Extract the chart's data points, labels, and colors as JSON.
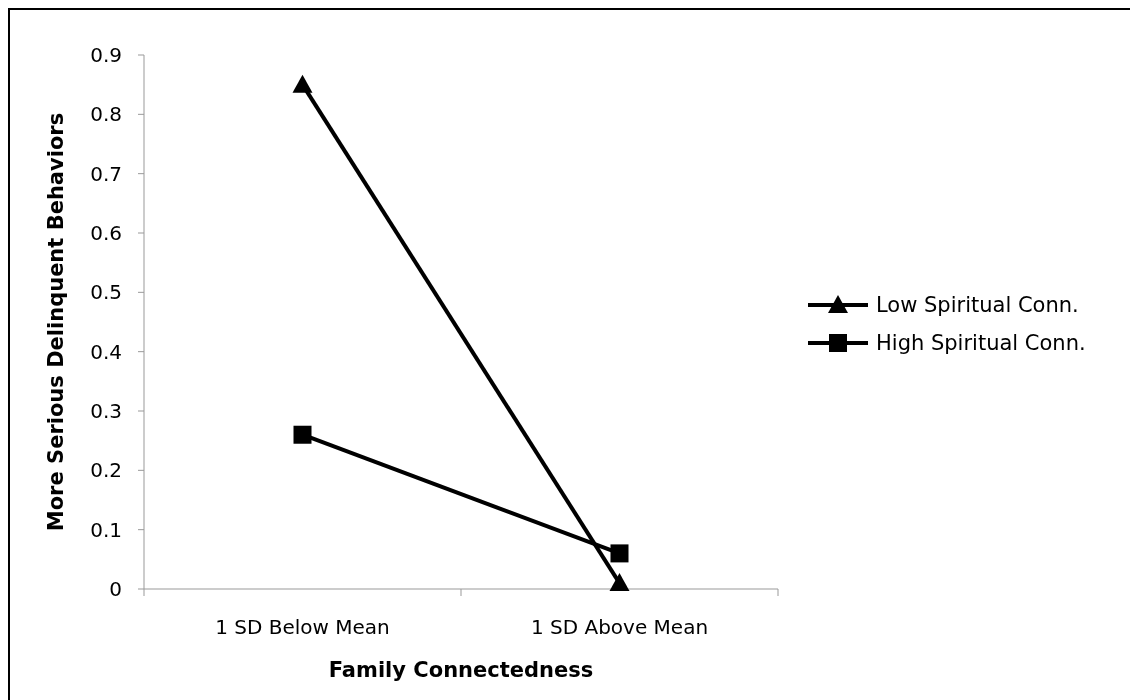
{
  "chart_data": {
    "type": "line",
    "xlabel": "Family Connectedness",
    "ylabel": "More Serious Delinquent Behaviors",
    "categories": [
      "1 SD Below Mean",
      "1 SD Above Mean"
    ],
    "series": [
      {
        "name": "Low Spiritual Conn.",
        "color": "#000000",
        "values": [
          0.85,
          0.01
        ],
        "marker": "triangle"
      },
      {
        "name": "High Spiritual Conn.",
        "color": "#000000",
        "values": [
          0.26,
          0.06
        ],
        "marker": "square"
      }
    ],
    "ylim": [
      0,
      0.9
    ],
    "yticks": [
      0,
      0.1,
      0.2,
      0.3,
      0.4,
      0.5,
      0.6,
      0.7,
      0.8,
      0.9
    ],
    "grid": false,
    "legend": "right",
    "line_style": "solid"
  }
}
